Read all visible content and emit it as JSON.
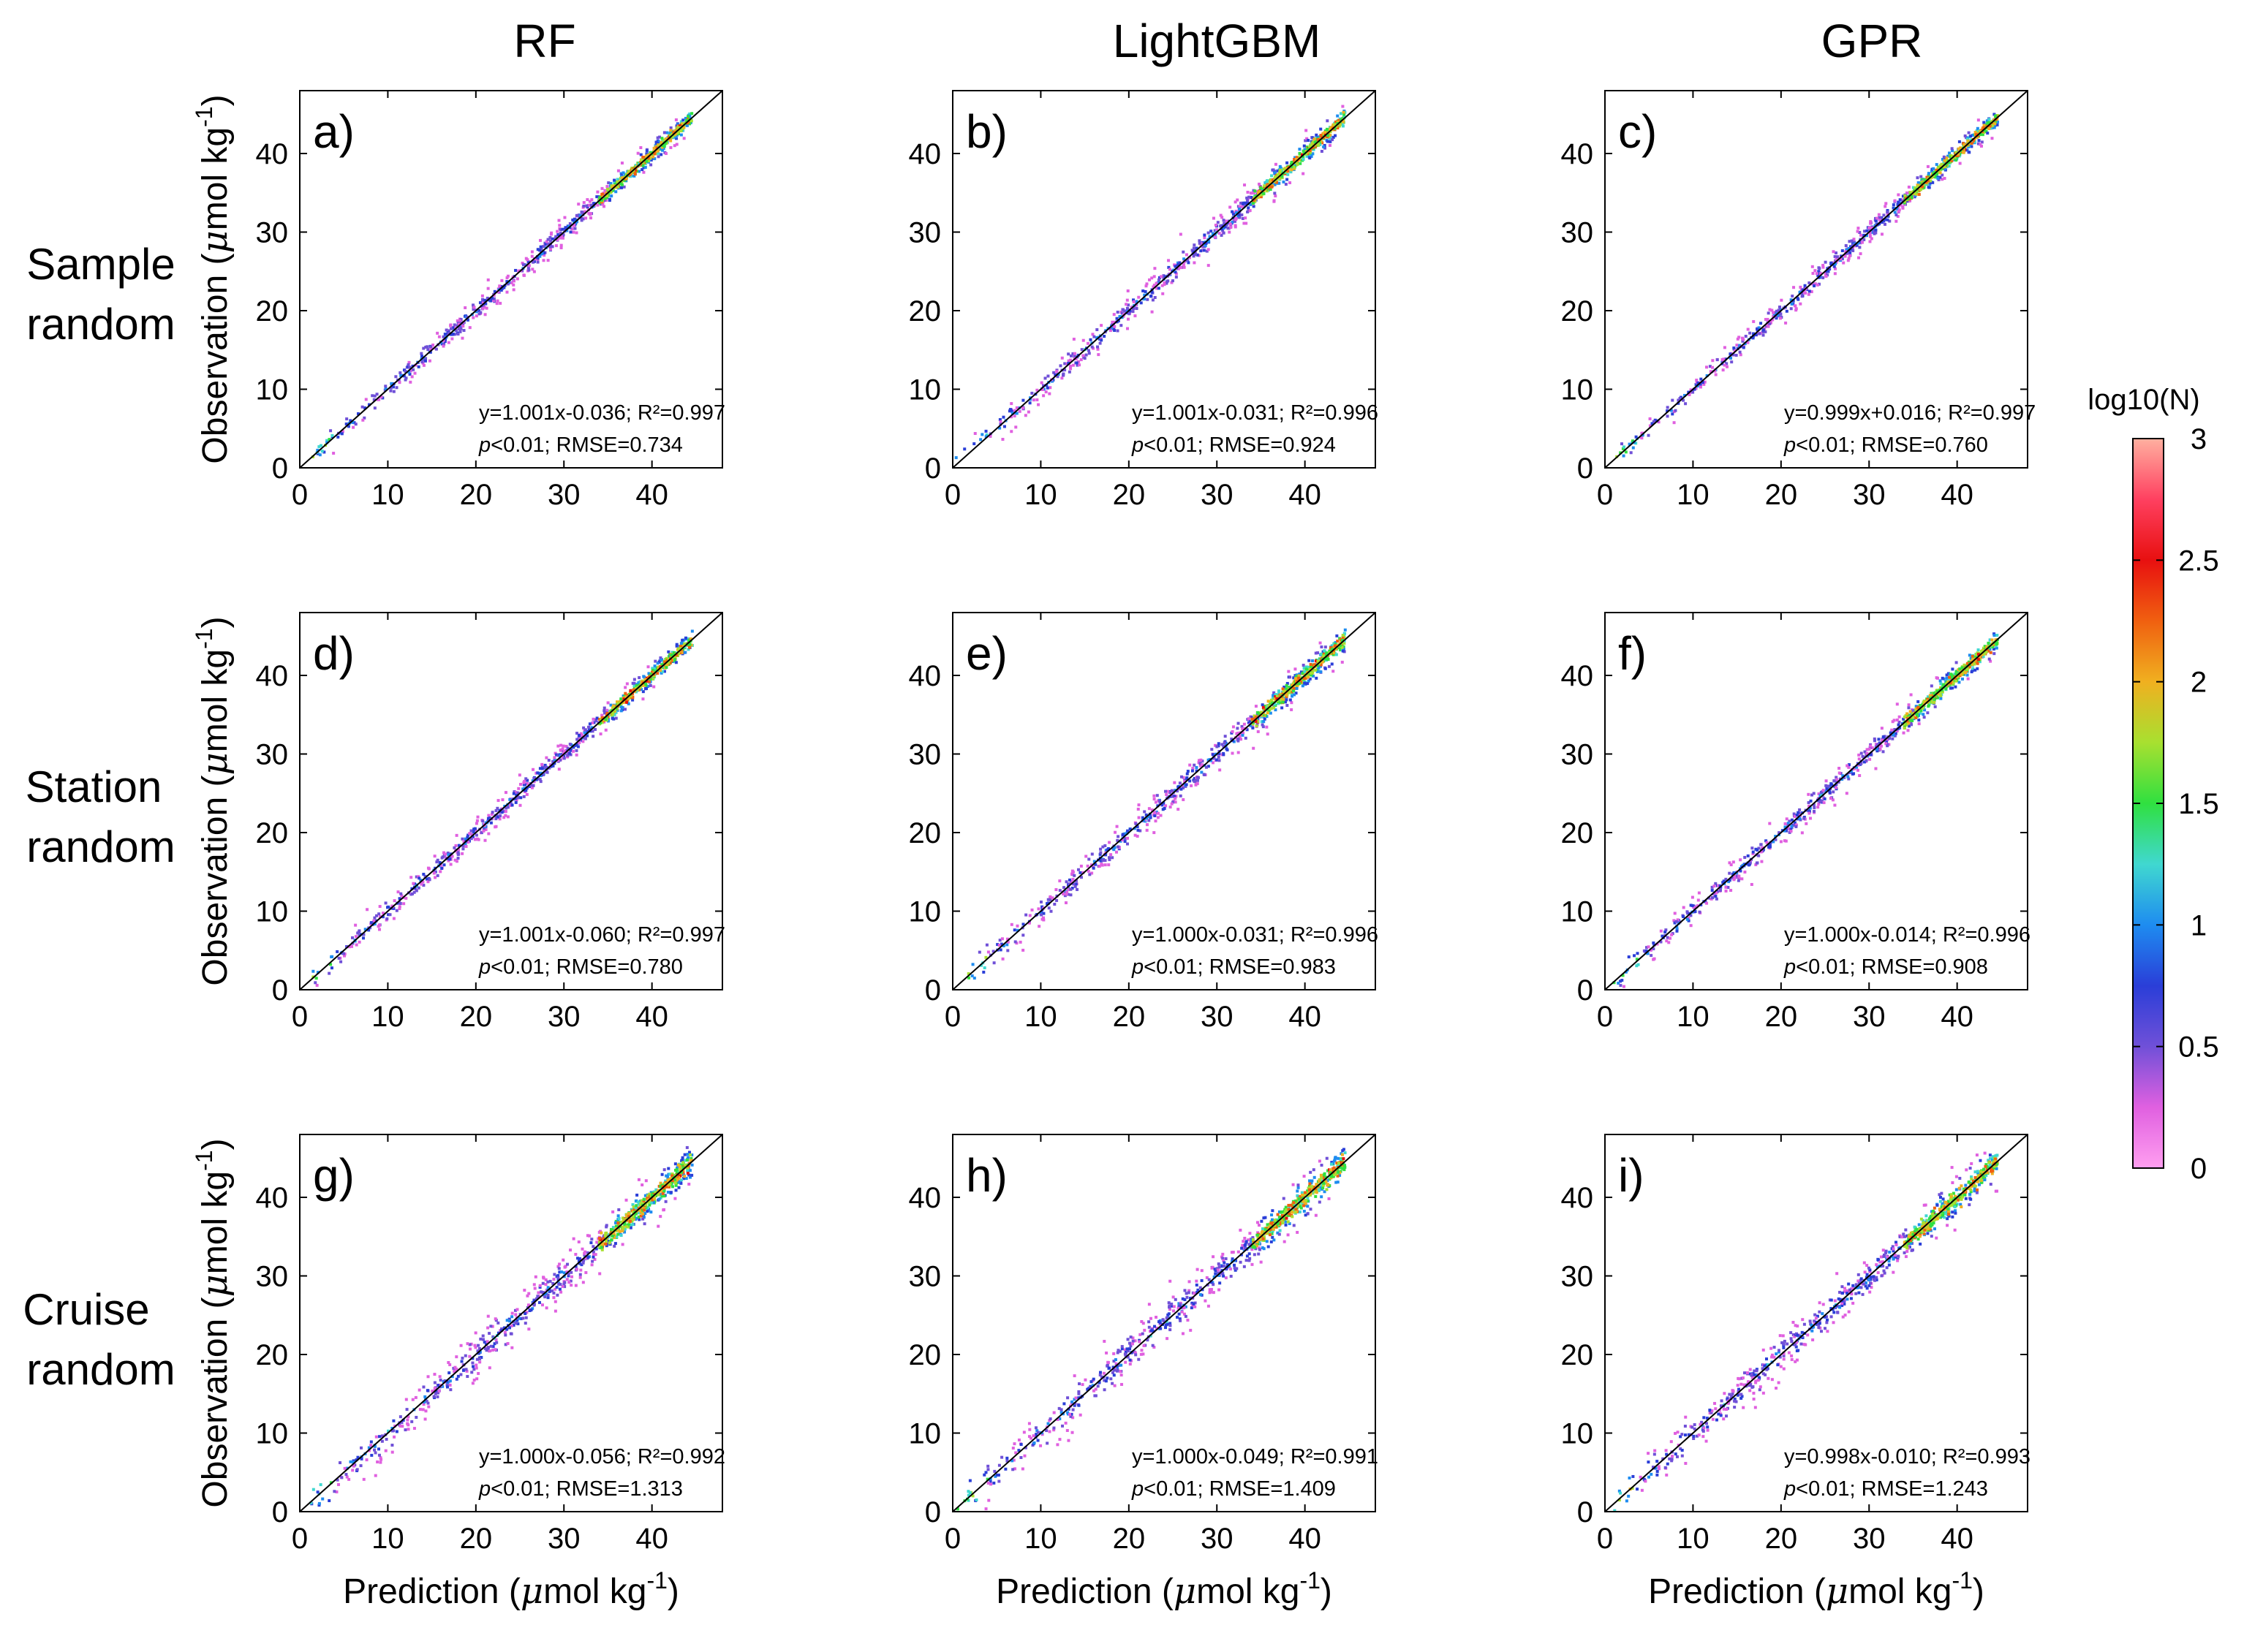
{
  "figure": {
    "column_titles": [
      "RF",
      "LightGBM",
      "GPR"
    ],
    "row_titles": [
      [
        "Sample",
        "random"
      ],
      [
        "Station",
        "random"
      ],
      [
        "Cruise",
        "random"
      ]
    ],
    "xlabel": "Prediction (μmol kg-1)",
    "ylabel": "Observation (μmol kg-1)",
    "colorbar": {
      "title": "log10(N)",
      "ticks": [
        0,
        0.5,
        1,
        1.5,
        2,
        2.5,
        3
      ],
      "tick_labels": [
        "0",
        "0.5",
        "1",
        "1.5",
        "2",
        "2.5",
        "3"
      ],
      "range": [
        0,
        3
      ],
      "colors": [
        "#ff9ff0",
        "#e060e0",
        "#7050d8",
        "#2a3ed8",
        "#1e8cf0",
        "#40d8d0",
        "#30e040",
        "#a8e030",
        "#f0b020",
        "#f06010",
        "#e81010",
        "#ff4060",
        "#ffb0a0"
      ]
    }
  },
  "chart_data": [
    {
      "type": "scatter",
      "panel": "a)",
      "model": "RF",
      "split": "Sample random",
      "x_ticks": [
        0,
        10,
        20,
        30,
        40
      ],
      "y_ticks": [
        0,
        10,
        20,
        30,
        40
      ],
      "xlim": [
        0,
        48
      ],
      "ylim": [
        0,
        48
      ],
      "reference_line": "1:1",
      "eq_line1": "y=1.001x-0.036; R²=0.997",
      "eq_line2_pre": "p",
      "eq_line2_post": "<0.01; RMSE=0.734",
      "slope": 1.001,
      "intercept": -0.036,
      "r2": 0.997,
      "rmse": 0.734
    },
    {
      "type": "scatter",
      "panel": "b)",
      "model": "LightGBM",
      "split": "Sample random",
      "x_ticks": [
        0,
        10,
        20,
        30,
        40
      ],
      "y_ticks": [
        0,
        10,
        20,
        30,
        40
      ],
      "xlim": [
        0,
        48
      ],
      "ylim": [
        0,
        48
      ],
      "reference_line": "1:1",
      "eq_line1": "y=1.001x-0.031; R²=0.996",
      "eq_line2_pre": "p",
      "eq_line2_post": "<0.01; RMSE=0.924",
      "slope": 1.001,
      "intercept": -0.031,
      "r2": 0.996,
      "rmse": 0.924
    },
    {
      "type": "scatter",
      "panel": "c)",
      "model": "GPR",
      "split": "Sample random",
      "x_ticks": [
        0,
        10,
        20,
        30,
        40
      ],
      "y_ticks": [
        0,
        10,
        20,
        30,
        40
      ],
      "xlim": [
        0,
        48
      ],
      "ylim": [
        0,
        48
      ],
      "reference_line": "1:1",
      "eq_line1": "y=0.999x+0.016; R²=0.997",
      "eq_line2_pre": "p",
      "eq_line2_post": "<0.01; RMSE=0.760",
      "slope": 0.999,
      "intercept": 0.016,
      "r2": 0.997,
      "rmse": 0.76
    },
    {
      "type": "scatter",
      "panel": "d)",
      "model": "RF",
      "split": "Station random",
      "x_ticks": [
        0,
        10,
        20,
        30,
        40
      ],
      "y_ticks": [
        0,
        10,
        20,
        30,
        40
      ],
      "xlim": [
        0,
        48
      ],
      "ylim": [
        0,
        48
      ],
      "reference_line": "1:1",
      "eq_line1": "y=1.001x-0.060; R²=0.997",
      "eq_line2_pre": "p",
      "eq_line2_post": "<0.01; RMSE=0.780",
      "slope": 1.001,
      "intercept": -0.06,
      "r2": 0.997,
      "rmse": 0.78
    },
    {
      "type": "scatter",
      "panel": "e)",
      "model": "LightGBM",
      "split": "Station random",
      "x_ticks": [
        0,
        10,
        20,
        30,
        40
      ],
      "y_ticks": [
        0,
        10,
        20,
        30,
        40
      ],
      "xlim": [
        0,
        48
      ],
      "ylim": [
        0,
        48
      ],
      "reference_line": "1:1",
      "eq_line1": "y=1.000x-0.031; R²=0.996",
      "eq_line2_pre": "p",
      "eq_line2_post": "<0.01; RMSE=0.983",
      "slope": 1.0,
      "intercept": -0.031,
      "r2": 0.996,
      "rmse": 0.983
    },
    {
      "type": "scatter",
      "panel": "f)",
      "model": "GPR",
      "split": "Station random",
      "x_ticks": [
        0,
        10,
        20,
        30,
        40
      ],
      "y_ticks": [
        0,
        10,
        20,
        30,
        40
      ],
      "xlim": [
        0,
        48
      ],
      "ylim": [
        0,
        48
      ],
      "reference_line": "1:1",
      "eq_line1": "y=1.000x-0.014; R²=0.996",
      "eq_line2_pre": "p",
      "eq_line2_post": "<0.01; RMSE=0.908",
      "slope": 1.0,
      "intercept": -0.014,
      "r2": 0.996,
      "rmse": 0.908
    },
    {
      "type": "scatter",
      "panel": "g)",
      "model": "RF",
      "split": "Cruise random",
      "x_ticks": [
        0,
        10,
        20,
        30,
        40
      ],
      "y_ticks": [
        0,
        10,
        20,
        30,
        40
      ],
      "xlim": [
        0,
        48
      ],
      "ylim": [
        0,
        48
      ],
      "reference_line": "1:1",
      "eq_line1": "y=1.000x-0.056; R²=0.992",
      "eq_line2_pre": "p",
      "eq_line2_post": "<0.01; RMSE=1.313",
      "slope": 1.0,
      "intercept": -0.056,
      "r2": 0.992,
      "rmse": 1.313
    },
    {
      "type": "scatter",
      "panel": "h)",
      "model": "LightGBM",
      "split": "Cruise random",
      "x_ticks": [
        0,
        10,
        20,
        30,
        40
      ],
      "y_ticks": [
        0,
        10,
        20,
        30,
        40
      ],
      "xlim": [
        0,
        48
      ],
      "ylim": [
        0,
        48
      ],
      "reference_line": "1:1",
      "eq_line1": "y=1.000x-0.049; R²=0.991",
      "eq_line2_pre": "p",
      "eq_line2_post": "<0.01; RMSE=1.409",
      "slope": 1.0,
      "intercept": -0.049,
      "r2": 0.991,
      "rmse": 1.409
    },
    {
      "type": "scatter",
      "panel": "i)",
      "model": "GPR",
      "split": "Cruise random",
      "x_ticks": [
        0,
        10,
        20,
        30,
        40
      ],
      "y_ticks": [
        0,
        10,
        20,
        30,
        40
      ],
      "xlim": [
        0,
        48
      ],
      "ylim": [
        0,
        48
      ],
      "reference_line": "1:1",
      "eq_line1": "y=0.998x-0.010; R²=0.993",
      "eq_line2_pre": "p",
      "eq_line2_post": "<0.01; RMSE=1.243",
      "slope": 0.998,
      "intercept": -0.01,
      "r2": 0.993,
      "rmse": 1.243
    }
  ]
}
